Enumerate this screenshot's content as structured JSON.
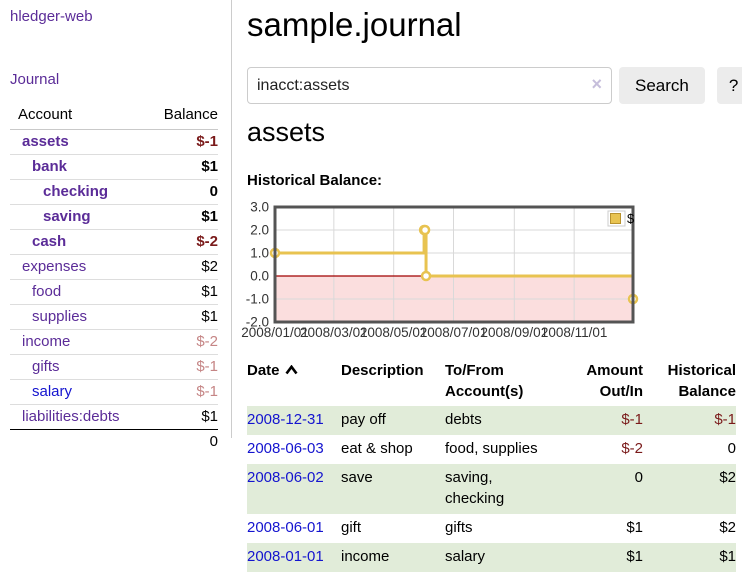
{
  "app": {
    "title": "hledger-web"
  },
  "sidebar": {
    "journal_link": "Journal",
    "accounts_header": "Account",
    "balance_header": "Balance",
    "accounts": [
      {
        "name": "assets",
        "balance": "$-1",
        "indent": 0,
        "bold": true,
        "balance_class": "neg"
      },
      {
        "name": "bank",
        "balance": "$1",
        "indent": 1,
        "bold": true,
        "balance_class": ""
      },
      {
        "name": "checking",
        "balance": "0",
        "indent": 2,
        "bold": true,
        "balance_class": ""
      },
      {
        "name": "saving",
        "balance": "$1",
        "indent": 2,
        "bold": true,
        "balance_class": ""
      },
      {
        "name": "cash",
        "balance": "$-2",
        "indent": 1,
        "bold": true,
        "balance_class": "neg"
      },
      {
        "name": "expenses",
        "balance": "$2",
        "indent": 0,
        "bold": false,
        "balance_class": ""
      },
      {
        "name": "food",
        "balance": "$1",
        "indent": 1,
        "bold": false,
        "balance_class": ""
      },
      {
        "name": "supplies",
        "balance": "$1",
        "indent": 1,
        "bold": false,
        "balance_class": ""
      },
      {
        "name": "income",
        "balance": "$-2",
        "indent": 0,
        "bold": false,
        "balance_class": "neg-dim"
      },
      {
        "name": "gifts",
        "balance": "$-1",
        "indent": 1,
        "bold": false,
        "balance_class": "neg-dim"
      },
      {
        "name": "salary",
        "balance": "$-1",
        "indent": 1,
        "bold": false,
        "balance_class": "neg-dim",
        "link_class": "blue"
      },
      {
        "name": "liabilities:debts",
        "balance": "$1",
        "indent": 0,
        "bold": false,
        "balance_class": ""
      }
    ],
    "total": "0"
  },
  "main": {
    "title": "sample.journal",
    "search": {
      "value": "inacct:assets",
      "clear_icon": "×",
      "button": "Search",
      "help_button": "?"
    },
    "account_heading": "assets",
    "chart": {
      "label": "Historical Balance:",
      "type": "step-line",
      "legend_label": "$",
      "series_color": "#e8c350",
      "series_edge_color": "#b8922e",
      "negative_fill": "#fbdede",
      "zero_line_color": "#a00000",
      "grid_color": "#d9d9d9",
      "border_color": "#545454",
      "ylim": [
        -2,
        3
      ],
      "xlim_days": [
        0,
        365
      ],
      "y_ticks": [
        {
          "label": "3.0",
          "value": 3
        },
        {
          "label": "2.0",
          "value": 2
        },
        {
          "label": "1.0",
          "value": 1
        },
        {
          "label": "0.0",
          "value": 0
        },
        {
          "label": "-1.0",
          "value": -1
        },
        {
          "label": "-2.0",
          "value": -2
        }
      ],
      "x_ticks": [
        {
          "label": "2008/01/01",
          "day": 0
        },
        {
          "label": "2008/03/01",
          "day": 60
        },
        {
          "label": "2008/05/01",
          "day": 121
        },
        {
          "label": "2008/07/01",
          "day": 182
        },
        {
          "label": "2008/09/01",
          "day": 244
        },
        {
          "label": "2008/11/01",
          "day": 305
        }
      ],
      "points": [
        {
          "date": "2008-01-01",
          "day": 0,
          "value": 1
        },
        {
          "date": "2008-06-01",
          "day": 152,
          "value": 2
        },
        {
          "date": "2008-06-02",
          "day": 153,
          "value": 2
        },
        {
          "date": "2008-06-03",
          "day": 154,
          "value": 0
        },
        {
          "date": "2008-12-31",
          "day": 365,
          "value": -1
        }
      ]
    },
    "register": {
      "headers": {
        "date": "Date",
        "description": "Description",
        "accounts": "To/From Account(s)",
        "amount": "Amount Out/In",
        "balance": "Historical Balance"
      },
      "rows": [
        {
          "date": "2008-12-31",
          "description": "pay off",
          "accounts": "debts",
          "amount": "$-1",
          "amount_class": "neg",
          "balance": "$-1",
          "balance_class": "neg",
          "green": true
        },
        {
          "date": "2008-06-03",
          "description": "eat & shop",
          "accounts": "food, supplies",
          "amount": "$-2",
          "amount_class": "neg",
          "balance": "0",
          "balance_class": "",
          "green": false
        },
        {
          "date": "2008-06-02",
          "description": "save",
          "accounts": "saving, checking",
          "amount": "0",
          "amount_class": "",
          "balance": "$2",
          "balance_class": "",
          "green": true
        },
        {
          "date": "2008-06-01",
          "description": "gift",
          "accounts": "gifts",
          "amount": "$1",
          "amount_class": "",
          "balance": "$2",
          "balance_class": "",
          "green": false
        },
        {
          "date": "2008-01-01",
          "description": "income",
          "accounts": "salary",
          "amount": "$1",
          "amount_class": "",
          "balance": "$1",
          "balance_class": "",
          "green": true
        }
      ]
    }
  }
}
